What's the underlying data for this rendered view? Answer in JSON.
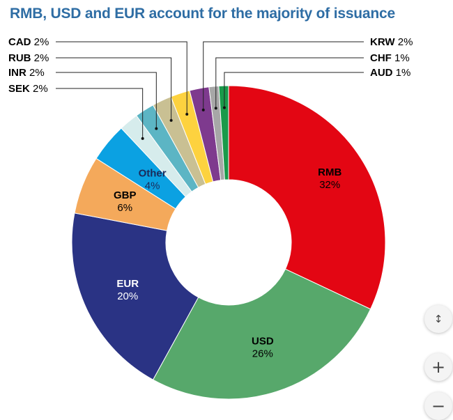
{
  "chart_data": {
    "type": "pie",
    "title": "RMB, USD and EUR account for the majority of issuance",
    "unit_suffix": "%",
    "slices": [
      {
        "label": "RMB",
        "value": 32,
        "color": "#e30613"
      },
      {
        "label": "USD",
        "value": 26,
        "color": "#57a86b"
      },
      {
        "label": "EUR",
        "value": 20,
        "color": "#2a3384"
      },
      {
        "label": "GBP",
        "value": 6,
        "color": "#f4a95b"
      },
      {
        "label": "Other",
        "value": 4,
        "color": "#0ba1e2"
      },
      {
        "label": "SEK",
        "value": 2,
        "color": "#d6ecec"
      },
      {
        "label": "INR",
        "value": 2,
        "color": "#5cb5c4"
      },
      {
        "label": "RUB",
        "value": 2,
        "color": "#c9c093"
      },
      {
        "label": "CAD",
        "value": 2,
        "color": "#fdd23f"
      },
      {
        "label": "KRW",
        "value": 2,
        "color": "#7e3a8e"
      },
      {
        "label": "CHF",
        "value": 1,
        "color": "#a7a7a7"
      },
      {
        "label": "AUD",
        "value": 1,
        "color": "#1a9a4a"
      }
    ]
  },
  "controls": {
    "exit_fullscreen_icon": "↕",
    "zoom_in_icon": "+",
    "zoom_out_icon": "−"
  }
}
